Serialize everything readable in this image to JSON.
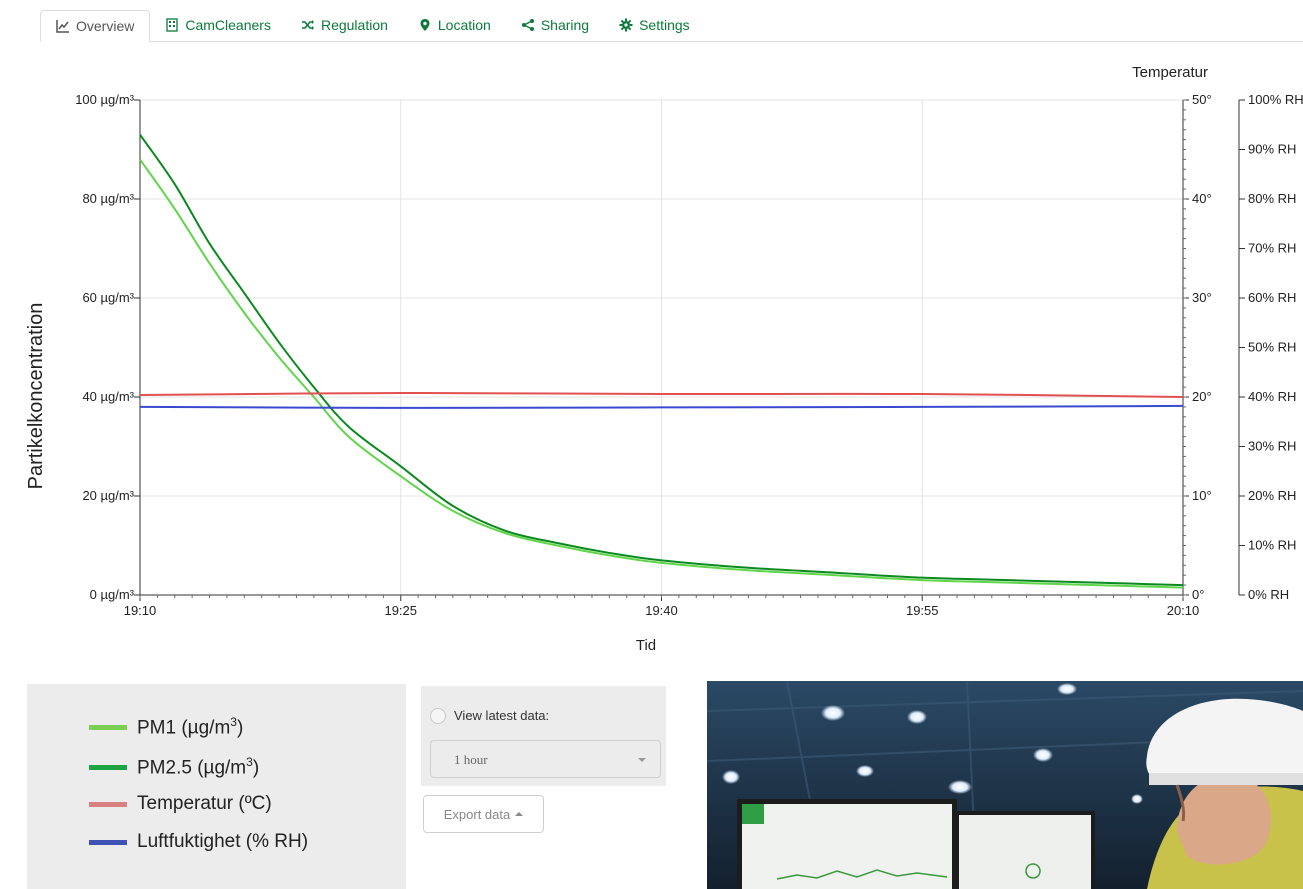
{
  "tabs": [
    {
      "label": "Overview",
      "icon": "line-chart-icon",
      "active": true
    },
    {
      "label": "CamCleaners",
      "icon": "building-icon",
      "active": false
    },
    {
      "label": "Regulation",
      "icon": "shuffle-icon",
      "active": false
    },
    {
      "label": "Location",
      "icon": "map-marker-icon",
      "active": false
    },
    {
      "label": "Sharing",
      "icon": "share-icon",
      "active": false
    },
    {
      "label": "Settings",
      "icon": "gear-icon",
      "active": false
    }
  ],
  "colors": {
    "tab_link": "#0b7a3b",
    "pm1": "#5fd64a",
    "pm25": "#0a8a1e",
    "temperature": "#e25050",
    "humidity": "#3a4ad0",
    "legend_pm1": "#7ccf55",
    "legend_pm25": "#1ea543",
    "legend_temp": "#d98080",
    "legend_rh": "#3e52b6"
  },
  "chart_data": {
    "type": "line",
    "xlabel": "Tid",
    "ylabel": "Partikelkoncentration",
    "y2label": "Temperatur",
    "x_range": [
      "19:10",
      "20:10"
    ],
    "x_ticks": [
      "19:10",
      "19:25",
      "19:40",
      "19:55",
      "20:10"
    ],
    "y_ticks": [
      "0 µg/m³",
      "20 µg/m³",
      "40 µg/m³",
      "60 µg/m³",
      "80 µg/m³",
      "100 µg/m³"
    ],
    "ylim": [
      0,
      100
    ],
    "y2_ticks": [
      "0°",
      "10°",
      "20°",
      "30°",
      "40°",
      "50°"
    ],
    "y2lim": [
      0,
      50
    ],
    "y3_ticks": [
      "0% RH",
      "10% RH",
      "20% RH",
      "30% RH",
      "40% RH",
      "50% RH",
      "60% RH",
      "70% RH",
      "80% RH",
      "90% RH",
      "100% RH"
    ],
    "y3lim": [
      0,
      100
    ],
    "grid": true,
    "series": [
      {
        "name": "PM1 (µg/m³)",
        "axis": "left",
        "x": [
          "19:10",
          "19:12",
          "19:14",
          "19:16",
          "19:18",
          "19:20",
          "19:22",
          "19:25",
          "19:28",
          "19:31",
          "19:34",
          "19:37",
          "19:40",
          "19:45",
          "19:50",
          "19:55",
          "20:00",
          "20:05",
          "20:10"
        ],
        "values": [
          88,
          78,
          67,
          57,
          48,
          40,
          32,
          24,
          17,
          12.5,
          10,
          8,
          6.5,
          5,
          4,
          3,
          2.5,
          2,
          1.5
        ]
      },
      {
        "name": "PM2.5 (µg/m³)",
        "axis": "left",
        "x": [
          "19:10",
          "19:12",
          "19:14",
          "19:16",
          "19:18",
          "19:20",
          "19:22",
          "19:25",
          "19:28",
          "19:31",
          "19:34",
          "19:37",
          "19:40",
          "19:45",
          "19:50",
          "19:55",
          "20:00",
          "20:05",
          "20:10"
        ],
        "values": [
          93,
          83,
          71,
          61,
          51,
          42,
          34,
          26,
          18,
          13,
          10.5,
          8.5,
          7,
          5.5,
          4.5,
          3.5,
          3,
          2.5,
          2
        ]
      },
      {
        "name": "Temperatur (ºC)",
        "axis": "temperature",
        "x": [
          "19:10",
          "19:25",
          "19:40",
          "19:55",
          "20:10"
        ],
        "values": [
          20.2,
          20.4,
          20.3,
          20.3,
          20.0
        ]
      },
      {
        "name": "Luftfuktighet (% RH)",
        "axis": "humidity",
        "x": [
          "19:10",
          "19:25",
          "19:40",
          "19:55",
          "20:10"
        ],
        "values": [
          38,
          37.8,
          37.9,
          38,
          38.2
        ]
      }
    ]
  },
  "legend": [
    {
      "label": "PM1 (µg/m",
      "sup": "3",
      "suffix": ")",
      "color_key": "legend_pm1"
    },
    {
      "label": "PM2.5 (µg/m",
      "sup": "3",
      "suffix": ")",
      "color_key": "legend_pm25"
    },
    {
      "label": "Temperatur (ºC)",
      "sup": "",
      "suffix": "",
      "color_key": "legend_temp"
    },
    {
      "label": "Luftfuktighet (% RH)",
      "sup": "",
      "suffix": "",
      "color_key": "legend_rh"
    }
  ],
  "controls": {
    "radio_label": "View latest data:",
    "range_value": "1 hour",
    "export_label": "Export data"
  }
}
